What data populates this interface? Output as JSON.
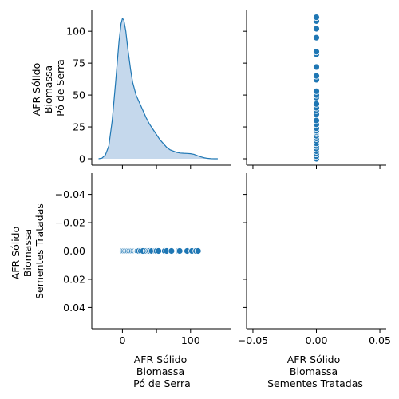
{
  "chart_data": {
    "type": "pairplot",
    "variables": [
      "AFR Sólido\nBiomassa\nPó de Serra",
      "AFR Sólido\nBiomassa\nSementes Tratadas"
    ],
    "values_po_de_serra": [
      0,
      2,
      4,
      6,
      8,
      10,
      12,
      14,
      16,
      18,
      20,
      21,
      22,
      24,
      27,
      30,
      35,
      38,
      40,
      43,
      48,
      50,
      53,
      62,
      65,
      72,
      82,
      84,
      95,
      102,
      108,
      111
    ],
    "values_sementes_tratadas": [
      0,
      0,
      0,
      0,
      0,
      0,
      0,
      0,
      0,
      0,
      0,
      0,
      0,
      0,
      0,
      0,
      0,
      0,
      0,
      0,
      0,
      0,
      0,
      0,
      0,
      0,
      0,
      0,
      0,
      0,
      0,
      0
    ],
    "kde_po_de_serra": {
      "x": [
        -35,
        -30,
        -25,
        -20,
        -15,
        -10,
        -5,
        -2,
        0,
        2,
        5,
        8,
        12,
        15,
        20,
        25,
        30,
        35,
        40,
        45,
        50,
        55,
        60,
        65,
        70,
        75,
        80,
        85,
        90,
        95,
        100,
        105,
        110,
        115,
        120,
        125,
        130,
        135,
        140
      ],
      "density_scaled": [
        0,
        0.5,
        3,
        10,
        30,
        60,
        92,
        106,
        110,
        109,
        100,
        86,
        70,
        60,
        50,
        44,
        38,
        32,
        27,
        23,
        19,
        15,
        12,
        9,
        7,
        6,
        5,
        4.5,
        4.3,
        4.2,
        4,
        3.5,
        2.5,
        1.5,
        0.8,
        0.3,
        0.1,
        0,
        0
      ]
    },
    "top_left_axis": {
      "ylim": [
        -5,
        117
      ],
      "yticks": [
        0,
        25,
        50,
        75,
        100
      ]
    },
    "top_right_axis": {
      "xlim": [
        -0.055,
        0.055
      ],
      "xticks": [
        -0.05,
        0.0,
        0.05
      ]
    },
    "bottom_left_axis": {
      "xlim": [
        -45,
        160
      ],
      "xticks": [
        0,
        50,
        100
      ],
      "xtick_labels": [
        "0",
        "",
        "100"
      ],
      "ylim": [
        -0.055,
        0.055
      ],
      "yticks": [
        -0.04,
        -0.02,
        0.0,
        0.02,
        0.04
      ]
    },
    "bottom_right_axis": {
      "xlim": [
        -0.055,
        0.055
      ],
      "xticks": [
        -0.05,
        0.0,
        0.05
      ],
      "xtick_labels": [
        "−0.05",
        "0.00",
        "0.05"
      ]
    },
    "bottom_left_tick_labels": {
      "x": [
        "0",
        "100"
      ],
      "y": [
        "0.04",
        "0.02",
        "0.00",
        "−0.02",
        "−0.04"
      ]
    },
    "top_left_tick_labels": {
      "y": [
        "0",
        "25",
        "50",
        "75",
        "100"
      ]
    },
    "colors": {
      "marker": "#1f77b4",
      "marker_edge": "#ffffff",
      "kde_line": "#1f77b4",
      "kde_fill": "#c5d8ec"
    },
    "grid": false
  }
}
